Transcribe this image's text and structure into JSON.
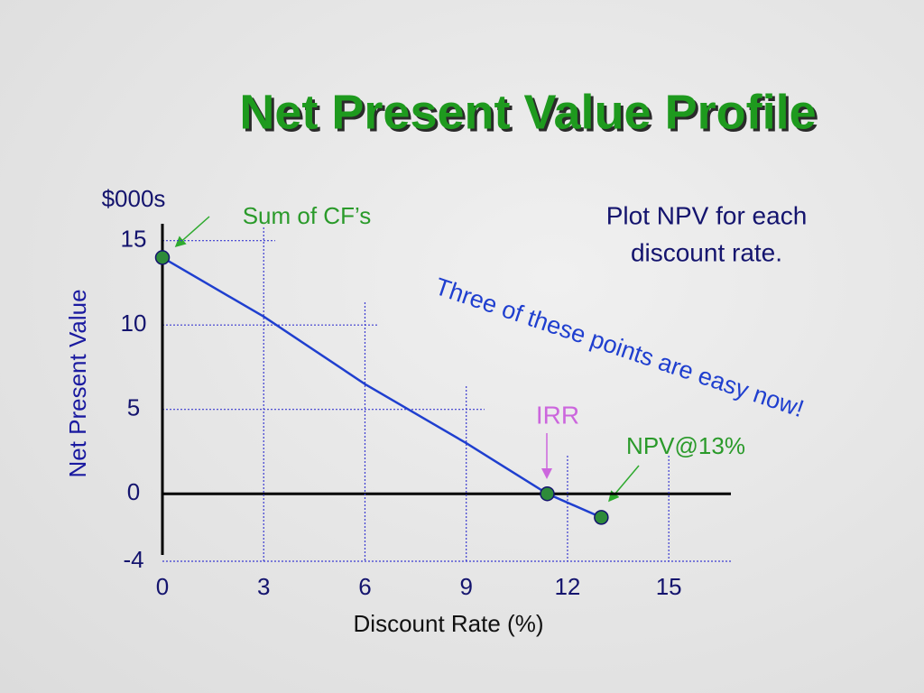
{
  "chart_data": {
    "type": "line",
    "title": "Net Present Value Profile",
    "y_unit": "$000s",
    "ylabel": "Net Present Value",
    "xlabel": "Discount Rate (%)",
    "xlim": [
      0,
      17
    ],
    "ylim": [
      -4,
      16
    ],
    "xticks": [
      0,
      3,
      6,
      9,
      12,
      15
    ],
    "yticks": [
      15,
      10,
      5,
      0,
      -4
    ],
    "grid": true,
    "series": [
      {
        "style": "line",
        "color": "#1f3fcf",
        "x": [
          0,
          3,
          6,
          9,
          11.4,
          13
        ],
        "values": [
          14,
          10.5,
          6.5,
          3,
          0,
          -1.4
        ]
      },
      {
        "style": "markers",
        "color": "#2e8b3a",
        "x": [
          0,
          11.4,
          13
        ],
        "values": [
          14,
          0,
          -1.4
        ]
      }
    ],
    "annotations": {
      "sum_cf": "Sum of CF’s",
      "plot_note": [
        "Plot NPV for each",
        "discount rate."
      ],
      "easy": "Three of these points are easy now!",
      "irr": "IRR",
      "npv13": "NPV@13%"
    }
  }
}
